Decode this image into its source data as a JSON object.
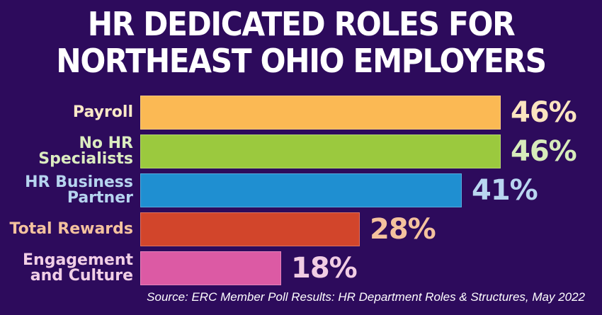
{
  "title": {
    "line1": "HR DEDICATED ROLES FOR",
    "line2": "NORTHEAST OHIO EMPLOYERS"
  },
  "source": "Source: ERC Member Poll Results: HR Department Roles & Structures, May 2022",
  "colors": {
    "background": "#2d0b5c",
    "payroll": "#fbb954",
    "no_hr_specialists": "#9bc93e",
    "hr_business_partner": "#1f8fd1",
    "total_rewards": "#d2452b",
    "engagement_and_culture": "#dc5aa4"
  },
  "rows": [
    {
      "label": "Payroll",
      "value": "46%",
      "num": 46,
      "bar_color": "#fbb954",
      "label_color": "#fbe9c7",
      "pct_color": "#fbe4c0"
    },
    {
      "label": "No HR\nSpecialists",
      "value": "46%",
      "num": 46,
      "bar_color": "#9bc93e",
      "label_color": "#dcecc0",
      "pct_color": "#d7ebbb"
    },
    {
      "label": "HR Business\nPartner",
      "value": "41%",
      "num": 41,
      "bar_color": "#1f8fd1",
      "label_color": "#b6d4ef",
      "pct_color": "#b9d6f0"
    },
    {
      "label": "Total Rewards",
      "value": "28%",
      "num": 28,
      "bar_color": "#d2452b",
      "label_color": "#f4c29e",
      "pct_color": "#f4c29e"
    },
    {
      "label": "Engagement\nand Culture",
      "value": "18%",
      "num": 18,
      "bar_color": "#dc5aa4",
      "label_color": "#f1cfe6",
      "pct_color": "#f1cde4"
    }
  ],
  "chart_data": {
    "type": "bar",
    "orientation": "horizontal",
    "title": "HR DEDICATED ROLES FOR NORTHEAST OHIO EMPLOYERS",
    "categories": [
      "Payroll",
      "No HR Specialists",
      "HR Business Partner",
      "Total Rewards",
      "Engagement and Culture"
    ],
    "values": [
      46,
      46,
      41,
      28,
      18
    ],
    "value_labels": [
      "46%",
      "46%",
      "41%",
      "28%",
      "18%"
    ],
    "xlabel": "",
    "ylabel": "",
    "grid": false,
    "legend": null,
    "annotation": "Source: ERC Member Poll Results: HR Department Roles & Structures, May 2022"
  }
}
